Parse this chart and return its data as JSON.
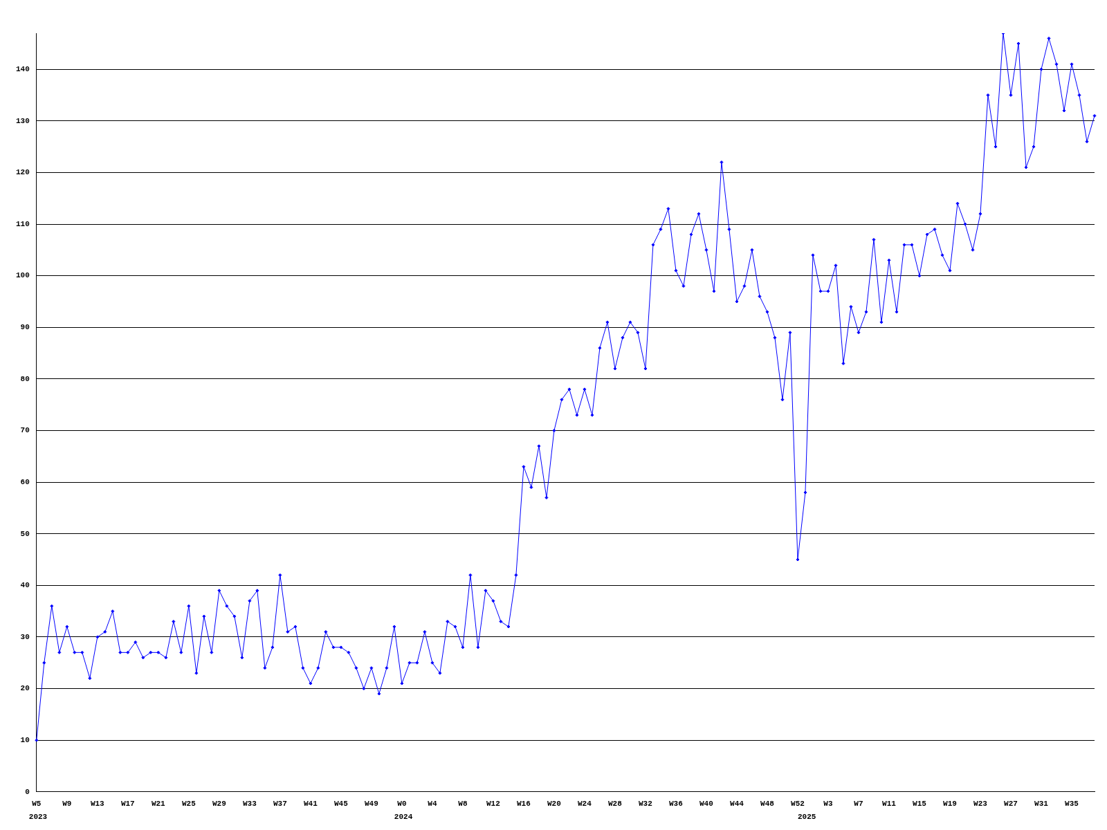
{
  "chart_data": {
    "type": "line",
    "categories": [
      "W5",
      null,
      null,
      null,
      "W9",
      null,
      null,
      null,
      "W13",
      null,
      null,
      null,
      "W17",
      null,
      null,
      null,
      "W21",
      null,
      null,
      null,
      "W25",
      null,
      null,
      null,
      "W29",
      null,
      null,
      null,
      "W33",
      null,
      null,
      null,
      "W37",
      null,
      null,
      null,
      "W41",
      null,
      null,
      null,
      "W45",
      null,
      null,
      null,
      "W49",
      null,
      null,
      null,
      "W0",
      null,
      null,
      null,
      "W4",
      null,
      null,
      null,
      "W8",
      null,
      null,
      null,
      "W12",
      null,
      null,
      null,
      "W16",
      null,
      null,
      null,
      "W20",
      null,
      null,
      null,
      "W24",
      null,
      null,
      null,
      "W28",
      null,
      null,
      null,
      "W32",
      null,
      null,
      null,
      "W36",
      null,
      null,
      null,
      "W40",
      null,
      null,
      null,
      "W44",
      null,
      null,
      null,
      "W48",
      null,
      null,
      null,
      "W52",
      null,
      null,
      null,
      "W3",
      null,
      null,
      null,
      "W7",
      null,
      null,
      null,
      "W11",
      null,
      null,
      null,
      "W15",
      null,
      null,
      null,
      "W19",
      null,
      null,
      null,
      "W23",
      null,
      null,
      null,
      "W27",
      null,
      null,
      null,
      "W31",
      null,
      null,
      null,
      "W35",
      null,
      null,
      null
    ],
    "series": [
      {
        "color": "#0000ff",
        "values": [
          10,
          25,
          36,
          27,
          32,
          27,
          27,
          22,
          30,
          31,
          35,
          27,
          27,
          29,
          26,
          27,
          27,
          26,
          33,
          27,
          36,
          23,
          34,
          27,
          39,
          36,
          34,
          26,
          37,
          39,
          24,
          28,
          42,
          31,
          32,
          24,
          21,
          24,
          31,
          28,
          28,
          27,
          24,
          20,
          24,
          19,
          24,
          32,
          21,
          25,
          25,
          31,
          25,
          23,
          33,
          32,
          28,
          42,
          28,
          39,
          37,
          33,
          32,
          42,
          63,
          59,
          67,
          57,
          70,
          76,
          78,
          73,
          78,
          73,
          86,
          91,
          82,
          88,
          91,
          89,
          82,
          106,
          109,
          113,
          101,
          98,
          108,
          112,
          105,
          97,
          122,
          109,
          95,
          98,
          105,
          96,
          93,
          88,
          76,
          89,
          45,
          58,
          104,
          97,
          97,
          102,
          83,
          94,
          89,
          93,
          107,
          91,
          103,
          93,
          106,
          106,
          100,
          108,
          109,
          104,
          101,
          114,
          110,
          105,
          112,
          135,
          125,
          147,
          135,
          145,
          121,
          125,
          140,
          146,
          141,
          132,
          141,
          135,
          126,
          131
        ]
      }
    ],
    "ylim": [
      0,
      147
    ],
    "yticks": [
      0,
      10,
      20,
      30,
      40,
      50,
      60,
      70,
      80,
      90,
      100,
      110,
      120,
      130,
      140
    ],
    "grid": "y",
    "legend": false,
    "marker": "diamond",
    "line_style": "solid",
    "annotations": [
      "2023",
      "2024",
      "2025"
    ]
  }
}
